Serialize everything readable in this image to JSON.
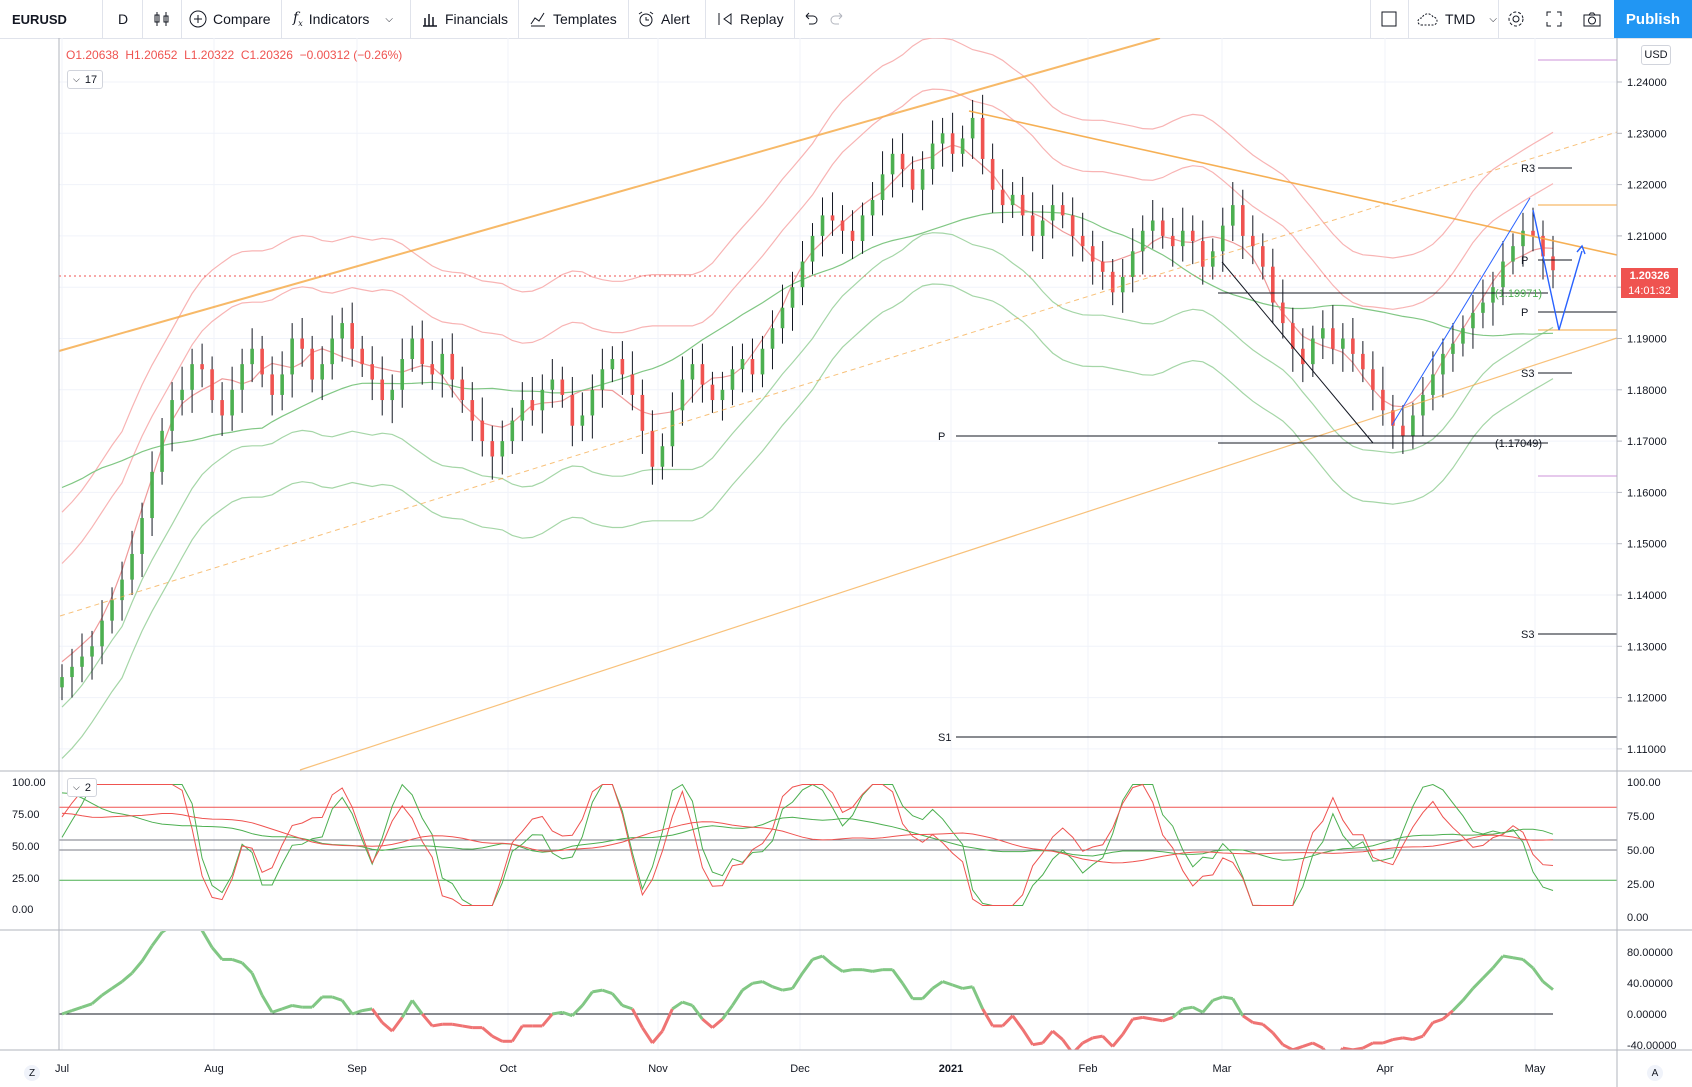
{
  "toolbar": {
    "symbol": "EURUSD",
    "interval": "D",
    "compare_label": "Compare",
    "indicators_label": "Indicators",
    "financials_label": "Financials",
    "templates_label": "Templates",
    "alert_label": "Alert",
    "replay_label": "Replay",
    "layout_name": "TMD",
    "publish_label": "Publish"
  },
  "legend": {
    "open": "O1.20638",
    "high": "H1.20652",
    "low": "L1.20322",
    "close": "C1.20326",
    "change": "−0.00312 (−0.26%)",
    "indicator_count": "17"
  },
  "oscillator_pane": {
    "indicator_count": "2"
  },
  "currency_label": "USD",
  "last_price": "1.20326",
  "countdown": "14:01:32",
  "colors": {
    "up": "#4caf50",
    "down": "#ef5350",
    "accent": "#2196f3",
    "trendline": "#f5a742",
    "pivot": "#131722"
  },
  "main_axis": {
    "ticks": [
      "1.24000",
      "1.23000",
      "1.22000",
      "1.21000",
      "1.20000",
      "1.19000",
      "1.18000",
      "1.17000",
      "1.16000",
      "1.15000",
      "1.14000",
      "1.13000",
      "1.12000",
      "1.11000"
    ]
  },
  "stoch_axis": {
    "left_ticks": [
      "100.00",
      "75.00",
      "50.00",
      "25.00",
      "0.00"
    ],
    "right_ticks": [
      "100.00",
      "75.00",
      "50.00",
      "25.00",
      "0.00"
    ]
  },
  "momentum_axis": {
    "ticks": [
      "80.00000",
      "40.00000",
      "0.00000",
      "-40.00000"
    ]
  },
  "time_axis": {
    "labels": [
      "Jul",
      "Aug",
      "Sep",
      "Oct",
      "Nov",
      "Dec",
      "2021",
      "Feb",
      "Mar",
      "Apr",
      "May"
    ]
  },
  "annotations": {
    "pivot_p_label": "P",
    "pivot_s1_label": "S1",
    "r3_label": "R3",
    "p_right_label": "P",
    "p_right_label2": "P",
    "s3_label": "S3",
    "s3_label2": "S3",
    "level_1": "(1.19971)",
    "level_2": "(1.17049)"
  },
  "corners": {
    "left": "Z",
    "right": "A"
  },
  "chart_data": {
    "type": "candlestick",
    "symbol": "EURUSD",
    "interval": "D",
    "ylim": [
      1.105,
      1.247
    ],
    "x_labels": [
      "Jul",
      "Aug",
      "Sep",
      "Oct",
      "Nov",
      "Dec",
      "2021",
      "Feb",
      "Mar",
      "Apr",
      "May"
    ],
    "close_path": [
      1.124,
      1.126,
      1.128,
      1.13,
      1.135,
      1.139,
      1.143,
      1.148,
      1.155,
      1.164,
      1.172,
      1.178,
      1.18,
      1.185,
      1.184,
      1.178,
      1.175,
      1.18,
      1.185,
      1.188,
      1.183,
      1.179,
      1.183,
      1.19,
      1.188,
      1.182,
      1.185,
      1.19,
      1.193,
      1.188,
      1.185,
      1.182,
      1.178,
      1.18,
      1.186,
      1.19,
      1.185,
      1.183,
      1.187,
      1.182,
      1.178,
      1.174,
      1.17,
      1.167,
      1.17,
      1.174,
      1.178,
      1.176,
      1.18,
      1.182,
      1.179,
      1.173,
      1.175,
      1.18,
      1.184,
      1.186,
      1.183,
      1.179,
      1.172,
      1.165,
      1.169,
      1.176,
      1.182,
      1.185,
      1.181,
      1.178,
      1.18,
      1.184,
      1.186,
      1.183,
      1.188,
      1.192,
      1.196,
      1.2,
      1.205,
      1.21,
      1.214,
      1.213,
      1.211,
      1.209,
      1.214,
      1.217,
      1.222,
      1.226,
      1.223,
      1.219,
      1.223,
      1.228,
      1.23,
      1.226,
      1.229,
      1.233,
      1.225,
      1.219,
      1.216,
      1.218,
      1.214,
      1.21,
      1.213,
      1.216,
      1.214,
      1.21,
      1.208,
      1.205,
      1.203,
      1.199,
      1.202,
      1.207,
      1.211,
      1.213,
      1.21,
      1.208,
      1.211,
      1.209,
      1.204,
      1.207,
      1.212,
      1.216,
      1.21,
      1.208,
      1.204,
      1.197,
      1.193,
      1.188,
      1.185,
      1.19,
      1.192,
      1.188,
      1.19,
      1.187,
      1.184,
      1.18,
      1.176,
      1.173,
      1.171,
      1.175,
      1.179,
      1.183,
      1.187,
      1.189,
      1.192,
      1.195,
      1.197,
      1.2,
      1.205,
      1.208,
      1.211,
      1.21,
      1.206,
      1.2033
    ],
    "series": [
      {
        "name": "close",
        "values": "close_path"
      }
    ]
  }
}
